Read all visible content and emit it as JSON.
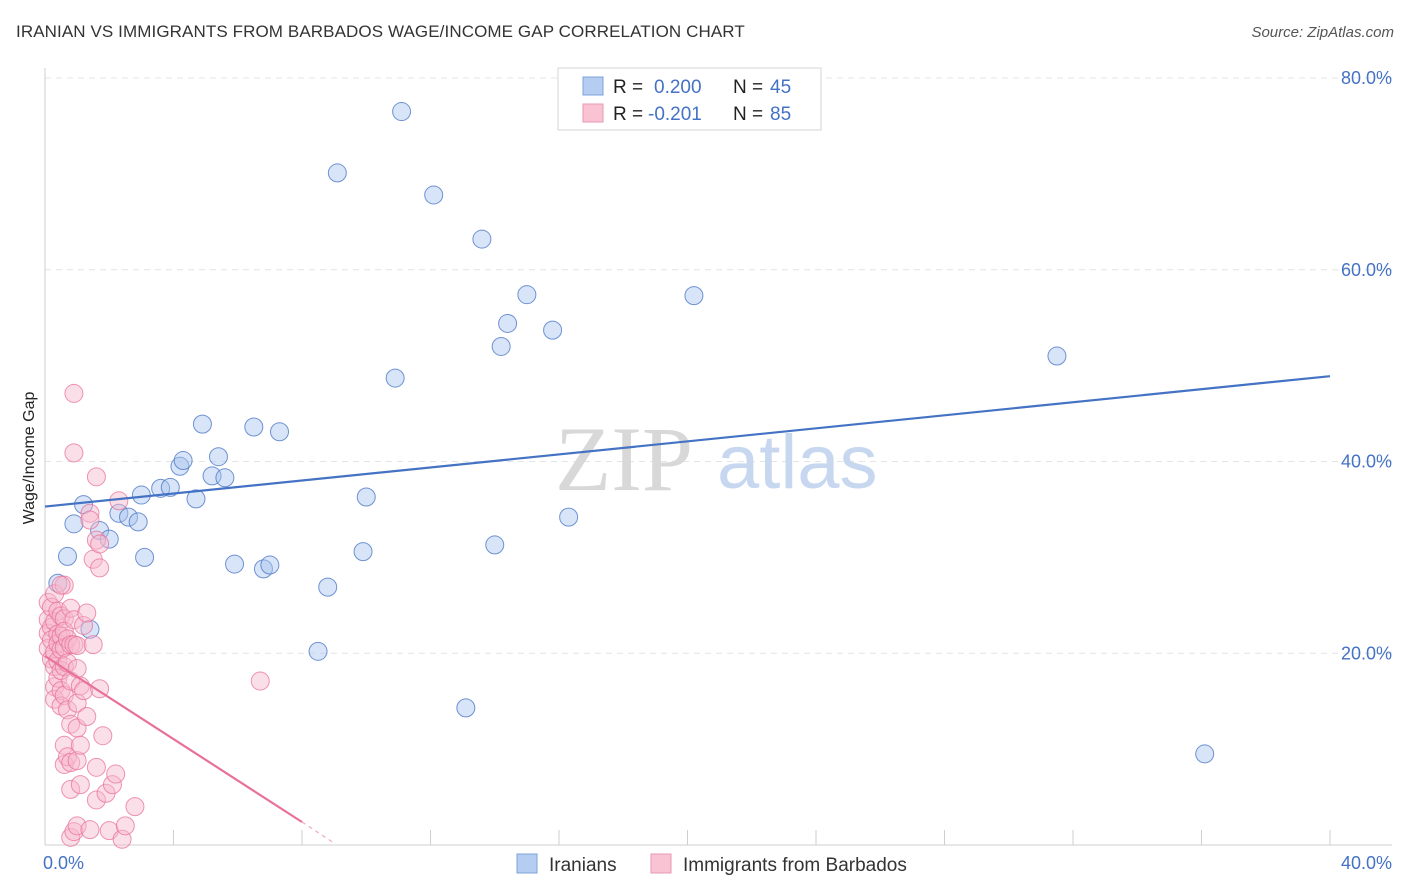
{
  "title": "IRANIAN VS IMMIGRANTS FROM BARBADOS WAGE/INCOME GAP CORRELATION CHART",
  "source": "Source: ZipAtlas.com",
  "watermark": {
    "zip": "ZIP",
    "atlas": "atlas"
  },
  "legend": {
    "r_label": "R =",
    "n_label": "N =",
    "rows": [
      {
        "r": "0.200",
        "n": "45",
        "color": "#4472c4"
      },
      {
        "r": "-0.201",
        "n": "85",
        "color": "#e8719a"
      }
    ]
  },
  "chart_data": {
    "type": "scatter",
    "xlabel": "",
    "ylabel": "Wage/Income Gap",
    "xlim": [
      0,
      40
    ],
    "ylim": [
      0,
      80
    ],
    "x_tick_labels": [
      "0.0%",
      "40.0%"
    ],
    "y_ticks": [
      20,
      40,
      60,
      80
    ],
    "y_tick_labels": [
      "20.0%",
      "40.0%",
      "60.0%",
      "80.0%"
    ],
    "grid": true,
    "series": [
      {
        "name": "Iranians",
        "color": "#4472c4",
        "fill": "#a9c4ee",
        "trend": {
          "x0": 0,
          "y0": 35.3,
          "x1": 40,
          "y1": 48.9
        },
        "points": [
          [
            0.4,
            27.3
          ],
          [
            0.7,
            30.1
          ],
          [
            0.9,
            33.5
          ],
          [
            1.2,
            35.5
          ],
          [
            1.4,
            22.5
          ],
          [
            1.7,
            32.8
          ],
          [
            2.0,
            31.9
          ],
          [
            2.3,
            34.6
          ],
          [
            2.6,
            34.2
          ],
          [
            2.9,
            33.7
          ],
          [
            3.1,
            30.0
          ],
          [
            3.0,
            36.5
          ],
          [
            3.6,
            37.2
          ],
          [
            3.9,
            37.3
          ],
          [
            4.2,
            39.5
          ],
          [
            4.3,
            40.1
          ],
          [
            4.7,
            36.1
          ],
          [
            4.9,
            43.9
          ],
          [
            5.2,
            38.5
          ],
          [
            5.4,
            40.5
          ],
          [
            5.6,
            38.3
          ],
          [
            5.9,
            29.3
          ],
          [
            6.5,
            43.6
          ],
          [
            6.8,
            28.8
          ],
          [
            7.0,
            29.2
          ],
          [
            7.3,
            43.1
          ],
          [
            8.5,
            20.2
          ],
          [
            8.8,
            26.9
          ],
          [
            9.1,
            70.1
          ],
          [
            9.9,
            30.6
          ],
          [
            10.0,
            36.3
          ],
          [
            10.9,
            48.7
          ],
          [
            11.1,
            76.5
          ],
          [
            12.1,
            67.8
          ],
          [
            13.1,
            14.3
          ],
          [
            13.6,
            63.2
          ],
          [
            14.0,
            31.3
          ],
          [
            14.2,
            52.0
          ],
          [
            14.4,
            54.4
          ],
          [
            15.0,
            57.4
          ],
          [
            15.8,
            53.7
          ],
          [
            16.3,
            34.2
          ],
          [
            20.2,
            57.3
          ],
          [
            31.5,
            51.0
          ],
          [
            36.1,
            9.5
          ]
        ]
      },
      {
        "name": "Immigrants from Barbados",
        "color": "#e8719a",
        "fill": "#f7b9cc",
        "trend": {
          "x0": 0,
          "y0": 19.7,
          "x1": 8.0,
          "y1": 2.4
        },
        "trend_dash": {
          "x0": 8.0,
          "y0": 2.4,
          "x1": 9.0,
          "y1": 0.2
        },
        "points": [
          [
            0.1,
            25.3
          ],
          [
            0.1,
            23.5
          ],
          [
            0.1,
            22.1
          ],
          [
            0.1,
            20.5
          ],
          [
            0.2,
            24.8
          ],
          [
            0.2,
            22.7
          ],
          [
            0.2,
            21.4
          ],
          [
            0.2,
            19.4
          ],
          [
            0.3,
            26.2
          ],
          [
            0.3,
            23.3
          ],
          [
            0.3,
            20.1
          ],
          [
            0.3,
            18.6
          ],
          [
            0.3,
            16.5
          ],
          [
            0.3,
            15.2
          ],
          [
            0.4,
            24.4
          ],
          [
            0.4,
            22.0
          ],
          [
            0.4,
            21.0
          ],
          [
            0.4,
            19.2
          ],
          [
            0.4,
            17.4
          ],
          [
            0.5,
            23.9
          ],
          [
            0.5,
            21.8
          ],
          [
            0.5,
            20.4
          ],
          [
            0.5,
            18.2
          ],
          [
            0.5,
            16.1
          ],
          [
            0.5,
            14.5
          ],
          [
            0.6,
            27.1
          ],
          [
            0.6,
            23.6
          ],
          [
            0.6,
            22.3
          ],
          [
            0.6,
            20.6
          ],
          [
            0.6,
            18.6
          ],
          [
            0.6,
            15.6
          ],
          [
            0.6,
            10.4
          ],
          [
            0.6,
            8.4
          ],
          [
            0.7,
            21.5
          ],
          [
            0.7,
            19.0
          ],
          [
            0.7,
            14.1
          ],
          [
            0.7,
            9.2
          ],
          [
            0.8,
            24.7
          ],
          [
            0.8,
            20.9
          ],
          [
            0.8,
            17.1
          ],
          [
            0.8,
            12.6
          ],
          [
            0.8,
            8.6
          ],
          [
            0.8,
            5.8
          ],
          [
            0.8,
            0.8
          ],
          [
            0.9,
            47.1
          ],
          [
            0.9,
            40.9
          ],
          [
            0.9,
            23.5
          ],
          [
            0.9,
            20.9
          ],
          [
            0.9,
            1.4
          ],
          [
            1.0,
            20.8
          ],
          [
            1.0,
            18.4
          ],
          [
            1.0,
            14.8
          ],
          [
            1.0,
            12.2
          ],
          [
            1.0,
            8.8
          ],
          [
            1.0,
            2.0
          ],
          [
            1.1,
            16.6
          ],
          [
            1.1,
            10.4
          ],
          [
            1.1,
            6.3
          ],
          [
            1.2,
            22.9
          ],
          [
            1.2,
            16.1
          ],
          [
            1.3,
            24.2
          ],
          [
            1.3,
            13.4
          ],
          [
            1.4,
            34.6
          ],
          [
            1.4,
            33.9
          ],
          [
            1.4,
            1.6
          ],
          [
            1.5,
            29.8
          ],
          [
            1.5,
            20.9
          ],
          [
            1.6,
            38.4
          ],
          [
            1.6,
            31.8
          ],
          [
            1.6,
            8.1
          ],
          [
            1.6,
            4.7
          ],
          [
            1.7,
            28.9
          ],
          [
            1.7,
            31.4
          ],
          [
            1.7,
            16.3
          ],
          [
            1.8,
            11.4
          ],
          [
            1.9,
            5.4
          ],
          [
            2.0,
            1.5
          ],
          [
            2.1,
            6.3
          ],
          [
            2.2,
            7.4
          ],
          [
            2.3,
            35.9
          ],
          [
            2.4,
            0.6
          ],
          [
            2.5,
            2.0
          ],
          [
            2.8,
            4.0
          ],
          [
            6.7,
            17.1
          ],
          [
            0.5,
            27.1
          ]
        ]
      }
    ]
  },
  "bottom_legend": {
    "items": [
      {
        "label": "Iranians"
      },
      {
        "label": "Immigrants from Barbados"
      }
    ]
  }
}
